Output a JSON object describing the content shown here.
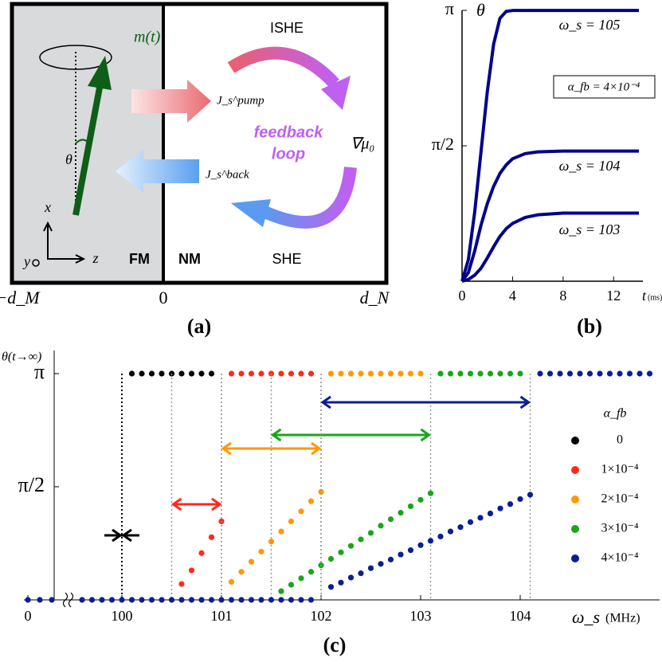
{
  "diagram": {
    "caption": "(a)",
    "moment": "m(t)",
    "angle": "θ",
    "axis_x": "x",
    "axis_y": "y",
    "axis_z": "z",
    "fm": "FM",
    "nm": "NM",
    "left_edge": "−d_M",
    "origin": "0",
    "right_edge": "d_N",
    "ishe": "ISHE",
    "she": "SHE",
    "loop": [
      "feedback",
      "loop"
    ],
    "potential": "∇μ₀",
    "pump": "J_s^pump",
    "back": "J_s^back"
  },
  "chart_data": [
    {
      "type": "line",
      "title": "(b)",
      "ylabel": "θ",
      "xlabel": "t",
      "xunit": "(ms)",
      "annotation": "α_fb = 4×10⁻⁴",
      "x": [
        0,
        0.5,
        1,
        1.5,
        2,
        2.5,
        3,
        3.5,
        4,
        5,
        6,
        8,
        10,
        12,
        14
      ],
      "xlim": [
        0,
        14
      ],
      "xticks": [
        0,
        4,
        8,
        12
      ],
      "ylim": [
        0,
        3.1416
      ],
      "yticks": [
        {
          "value": 1.5708,
          "label": "π/2"
        },
        {
          "value": 3.1416,
          "label": "π"
        }
      ],
      "series": [
        {
          "name": "ω_s = 105",
          "color": "#00008b",
          "values": [
            0,
            0.25,
            0.8,
            1.5,
            2.2,
            2.75,
            3.05,
            3.13,
            3.14,
            3.14,
            3.14,
            3.14,
            3.14,
            3.14,
            3.14
          ]
        },
        {
          "name": "ω_s = 104",
          "color": "#00008b",
          "values": [
            0,
            0.1,
            0.35,
            0.65,
            0.9,
            1.1,
            1.25,
            1.35,
            1.42,
            1.48,
            1.5,
            1.51,
            1.51,
            1.51,
            1.51
          ]
        },
        {
          "name": "ω_s = 103",
          "color": "#00008b",
          "values": [
            0,
            0.02,
            0.07,
            0.15,
            0.27,
            0.4,
            0.52,
            0.61,
            0.67,
            0.74,
            0.77,
            0.79,
            0.79,
            0.79,
            0.79
          ]
        }
      ]
    },
    {
      "type": "scatter",
      "title": "(c)",
      "ylabel": "θ(t→∞)",
      "xlabel": "ω_s",
      "xunit": "(MHz)",
      "legend_title": "α_fb",
      "xlim": [
        0,
        105.4
      ],
      "x_break": [
        2.5,
        99.5
      ],
      "xticks": [
        0,
        100,
        101,
        102,
        103,
        104
      ],
      "ylim": [
        0,
        3.1416
      ],
      "yticks": [
        {
          "value": 1.5708,
          "label": "π/2"
        },
        {
          "value": 3.1416,
          "label": "π"
        }
      ],
      "series": [
        {
          "name": "0",
          "color": "#000000",
          "interval": [
            100,
            100
          ],
          "x": [
            100.1,
            100.2,
            100.3,
            100.4,
            100.5,
            100.6,
            100.7,
            100.8,
            100.9
          ],
          "values": [
            3.1416,
            3.1416,
            3.1416,
            3.1416,
            3.1416,
            3.1416,
            3.1416,
            3.1416,
            3.1416
          ]
        },
        {
          "name": "1×10⁻⁴",
          "color": "#ff2a1a",
          "interval": [
            100.5,
            101
          ],
          "x": [
            100.6,
            100.7,
            100.8,
            100.9,
            101.0,
            101.1,
            101.2,
            101.3,
            101.4,
            101.5,
            101.6,
            101.7,
            101.8,
            101.9
          ],
          "values": [
            0.22,
            0.41,
            0.65,
            0.87,
            1.09,
            3.1416,
            3.1416,
            3.1416,
            3.1416,
            3.1416,
            3.1416,
            3.1416,
            3.1416,
            3.1416
          ]
        },
        {
          "name": "2×10⁻⁴",
          "color": "#ff9900",
          "interval": [
            101,
            102
          ],
          "x": [
            101.1,
            101.2,
            101.3,
            101.4,
            101.5,
            101.6,
            101.7,
            101.8,
            101.9,
            102.0,
            102.1,
            102.2,
            102.3,
            102.4,
            102.5,
            102.6,
            102.7,
            102.8,
            102.9,
            103.0
          ],
          "values": [
            0.25,
            0.39,
            0.53,
            0.67,
            0.81,
            0.95,
            1.09,
            1.23,
            1.37,
            1.5,
            3.1416,
            3.1416,
            3.1416,
            3.1416,
            3.1416,
            3.1416,
            3.1416,
            3.1416,
            3.1416,
            3.1416
          ]
        },
        {
          "name": "3×10⁻⁴",
          "color": "#1aa51a",
          "interval": [
            101.5,
            103.1
          ],
          "x": [
            101.6,
            101.7,
            101.8,
            101.9,
            102.0,
            102.1,
            102.2,
            102.3,
            102.4,
            102.5,
            102.6,
            102.7,
            102.8,
            102.9,
            103.0,
            103.1,
            103.2,
            103.3,
            103.4,
            103.5,
            103.6,
            103.7,
            103.8,
            103.9,
            104.0
          ],
          "values": [
            0.12,
            0.21,
            0.3,
            0.39,
            0.48,
            0.57,
            0.66,
            0.75,
            0.84,
            0.93,
            1.03,
            1.12,
            1.21,
            1.3,
            1.39,
            1.48,
            3.1416,
            3.1416,
            3.1416,
            3.1416,
            3.1416,
            3.1416,
            3.1416,
            3.1416,
            3.1416
          ]
        },
        {
          "name": "4×10⁻⁴",
          "color": "#0a1e96",
          "interval": [
            102,
            104.1
          ],
          "x": [
            0,
            1,
            2,
            99.6,
            99.7,
            99.8,
            99.9,
            100.0,
            100.1,
            100.2,
            100.3,
            100.4,
            100.5,
            100.6,
            100.7,
            100.8,
            100.9,
            101.0,
            101.1,
            101.2,
            101.3,
            101.4,
            101.5,
            101.6,
            101.7,
            101.8,
            101.9,
            102.1,
            102.2,
            102.3,
            102.4,
            102.5,
            102.6,
            102.7,
            102.8,
            102.9,
            103.0,
            103.1,
            103.2,
            103.3,
            103.4,
            103.5,
            103.6,
            103.7,
            103.8,
            103.9,
            104.0,
            104.1,
            104.2,
            104.3,
            104.4,
            104.5,
            104.6,
            104.7,
            104.8,
            104.9,
            105.0,
            105.1,
            105.2,
            105.3
          ],
          "values": [
            0,
            0,
            0,
            0,
            0,
            0,
            0,
            0,
            0,
            0,
            0,
            0,
            0,
            0,
            0,
            0,
            0,
            0,
            0,
            0,
            0,
            0,
            0,
            0,
            0,
            0,
            0,
            0.18,
            0.24,
            0.31,
            0.37,
            0.44,
            0.5,
            0.56,
            0.63,
            0.69,
            0.76,
            0.82,
            0.88,
            0.95,
            1.01,
            1.08,
            1.14,
            1.2,
            1.27,
            1.33,
            1.4,
            1.46,
            3.1416,
            3.1416,
            3.1416,
            3.1416,
            3.1416,
            3.1416,
            3.1416,
            3.1416,
            3.1416,
            3.1416,
            3.1416,
            3.1416
          ]
        }
      ]
    }
  ]
}
